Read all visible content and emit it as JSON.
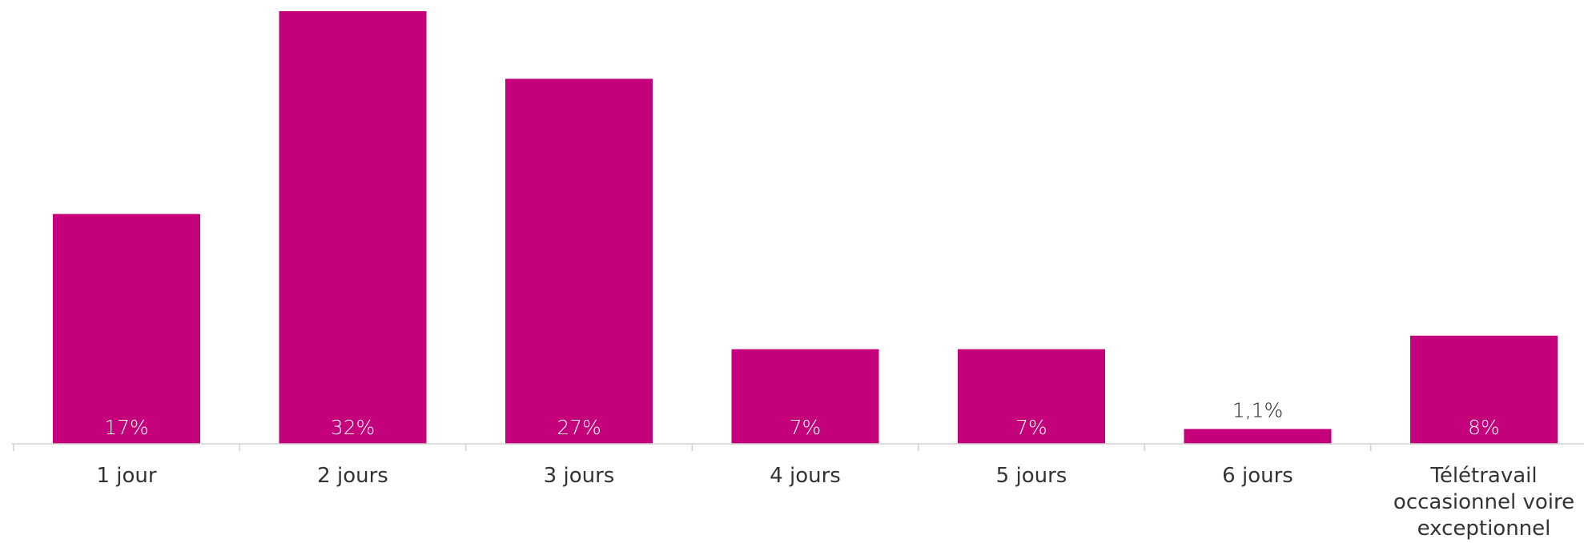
{
  "chart_data": {
    "type": "bar",
    "categories": [
      [
        "1 jour"
      ],
      [
        "2 jours"
      ],
      [
        "3 jours"
      ],
      [
        "4 jours"
      ],
      [
        "5 jours"
      ],
      [
        "6 jours"
      ],
      [
        "Télétravail",
        "occasionnel voire",
        "exceptionnel"
      ]
    ],
    "values": [
      17,
      32,
      27,
      7,
      7,
      1.1,
      8
    ],
    "data_labels": [
      "17%",
      "32%",
      "27%",
      "7%",
      "7%",
      "1,1%",
      "8%"
    ],
    "ylim": [
      0,
      32
    ],
    "grid": false,
    "legend": "none",
    "colors": {
      "bar": "#C4007A",
      "label_inside": "#ffffff",
      "label_outside": "#222222",
      "axis": "#d0d0d0",
      "category_text": "#333333"
    }
  }
}
